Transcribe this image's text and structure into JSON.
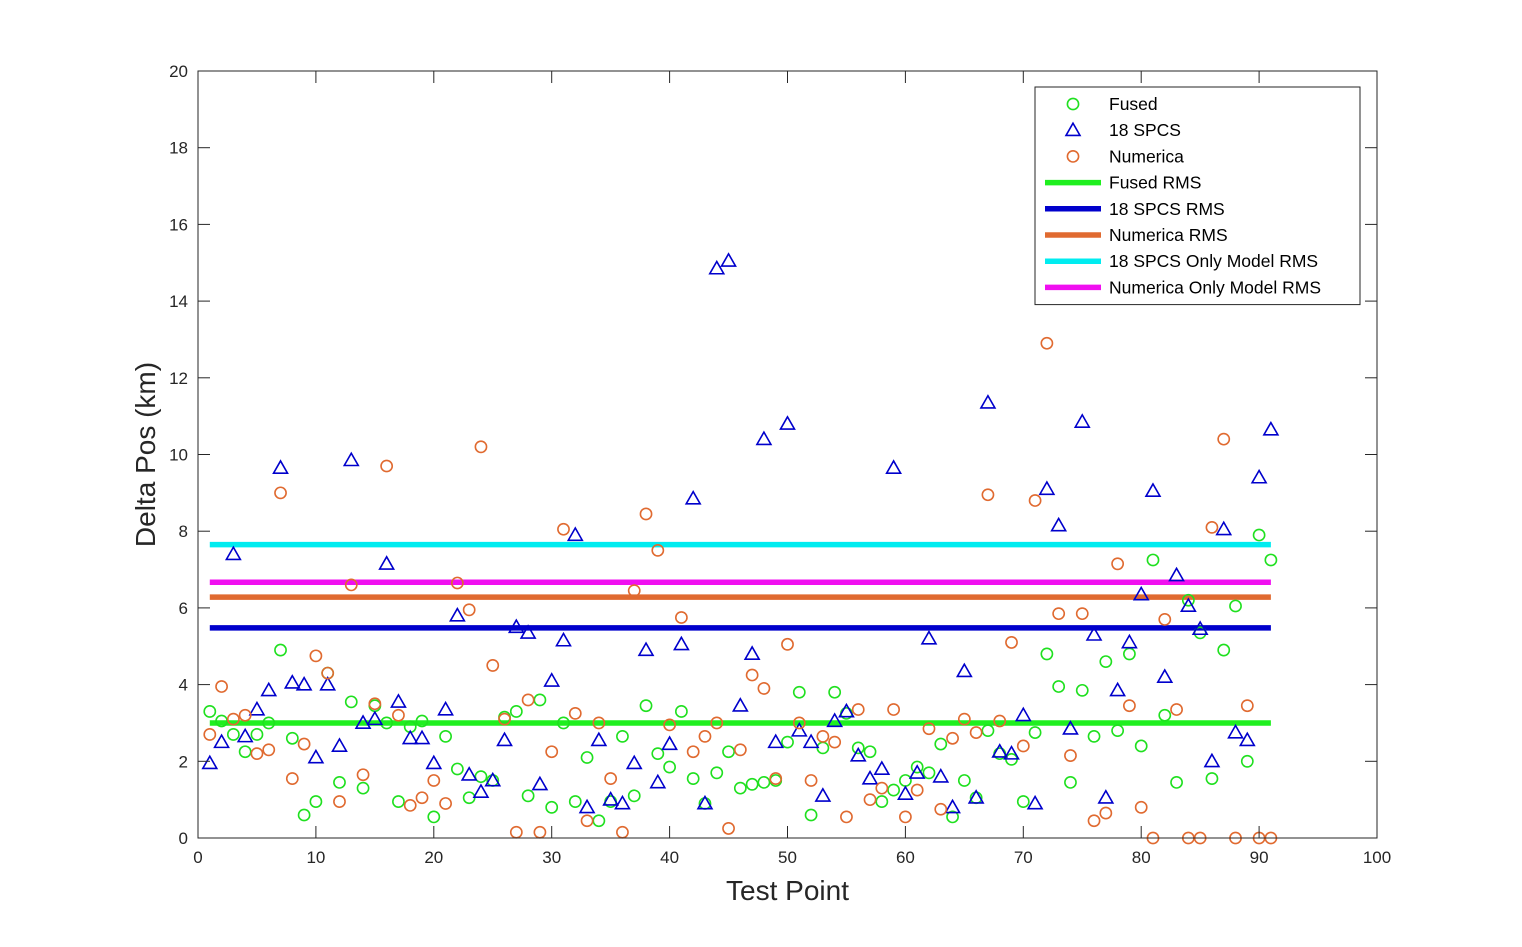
{
  "chart_data": {
    "type": "scatter",
    "xlabel": "Test Point",
    "ylabel": "Delta Pos (km)",
    "xlim": [
      0,
      100
    ],
    "ylim": [
      0,
      20
    ],
    "x_ticks": [
      0,
      10,
      20,
      30,
      40,
      50,
      60,
      70,
      80,
      90,
      100
    ],
    "y_ticks": [
      0,
      2,
      4,
      6,
      8,
      10,
      12,
      14,
      16,
      18,
      20
    ],
    "grid": false,
    "legend_position": "top-right",
    "series": [
      {
        "name": "Fused",
        "marker": "circle",
        "color": "#1fe01f",
        "points": [
          [
            1,
            3.3
          ],
          [
            2,
            3.05
          ],
          [
            3,
            2.7
          ],
          [
            4,
            2.25
          ],
          [
            5,
            2.7
          ],
          [
            6,
            3.0
          ],
          [
            7,
            4.9
          ],
          [
            8,
            2.6
          ],
          [
            9,
            0.6
          ],
          [
            10,
            0.95
          ],
          [
            11,
            4.3
          ],
          [
            12,
            1.45
          ],
          [
            13,
            3.55
          ],
          [
            14,
            1.3
          ],
          [
            15,
            3.45
          ],
          [
            16,
            3.0
          ],
          [
            17,
            0.95
          ],
          [
            18,
            2.9
          ],
          [
            19,
            3.05
          ],
          [
            20,
            0.55
          ],
          [
            21,
            2.65
          ],
          [
            22,
            1.8
          ],
          [
            23,
            1.05
          ],
          [
            24,
            1.6
          ],
          [
            25,
            1.5
          ],
          [
            26,
            3.15
          ],
          [
            27,
            3.3
          ],
          [
            28,
            1.1
          ],
          [
            29,
            3.6
          ],
          [
            30,
            0.8
          ],
          [
            31,
            3.0
          ],
          [
            32,
            0.95
          ],
          [
            33,
            2.1
          ],
          [
            34,
            0.45
          ],
          [
            35,
            0.95
          ],
          [
            36,
            2.65
          ],
          [
            37,
            1.1
          ],
          [
            38,
            3.45
          ],
          [
            39,
            2.2
          ],
          [
            40,
            1.85
          ],
          [
            41,
            3.3
          ],
          [
            42,
            1.55
          ],
          [
            43,
            0.9
          ],
          [
            44,
            1.7
          ],
          [
            45,
            2.25
          ],
          [
            46,
            1.3
          ],
          [
            47,
            1.4
          ],
          [
            48,
            1.45
          ],
          [
            49,
            1.5
          ],
          [
            50,
            2.5
          ],
          [
            51,
            3.8
          ],
          [
            52,
            0.6
          ],
          [
            53,
            2.35
          ],
          [
            54,
            3.8
          ],
          [
            55,
            3.25
          ],
          [
            56,
            2.35
          ],
          [
            57,
            2.25
          ],
          [
            58,
            0.95
          ],
          [
            59,
            1.25
          ],
          [
            60,
            1.5
          ],
          [
            61,
            1.85
          ],
          [
            62,
            1.7
          ],
          [
            63,
            2.45
          ],
          [
            64,
            0.55
          ],
          [
            65,
            1.5
          ],
          [
            66,
            1.05
          ],
          [
            67,
            2.8
          ],
          [
            68,
            2.2
          ],
          [
            69,
            2.05
          ],
          [
            70,
            0.95
          ],
          [
            71,
            2.75
          ],
          [
            72,
            4.8
          ],
          [
            73,
            3.95
          ],
          [
            74,
            1.45
          ],
          [
            75,
            3.85
          ],
          [
            76,
            2.65
          ],
          [
            77,
            4.6
          ],
          [
            78,
            2.8
          ],
          [
            79,
            4.8
          ],
          [
            80,
            2.4
          ],
          [
            81,
            7.25
          ],
          [
            82,
            3.2
          ],
          [
            83,
            1.45
          ],
          [
            84,
            6.2
          ],
          [
            85,
            5.35
          ],
          [
            86,
            1.55
          ],
          [
            87,
            4.9
          ],
          [
            88,
            6.05
          ],
          [
            89,
            2.0
          ],
          [
            90,
            7.9
          ],
          [
            91,
            7.25
          ]
        ]
      },
      {
        "name": "18 SPCS",
        "marker": "triangle",
        "color": "#0000cc",
        "points": [
          [
            1,
            1.95
          ],
          [
            2,
            2.5
          ],
          [
            3,
            7.4
          ],
          [
            4,
            2.65
          ],
          [
            5,
            3.35
          ],
          [
            6,
            3.85
          ],
          [
            7,
            9.65
          ],
          [
            8,
            4.05
          ],
          [
            9,
            4.0
          ],
          [
            10,
            2.1
          ],
          [
            11,
            4.0
          ],
          [
            12,
            2.4
          ],
          [
            13,
            9.85
          ],
          [
            14,
            3.0
          ],
          [
            15,
            3.1
          ],
          [
            16,
            7.15
          ],
          [
            17,
            3.55
          ],
          [
            18,
            2.6
          ],
          [
            19,
            2.6
          ],
          [
            20,
            1.95
          ],
          [
            21,
            3.35
          ],
          [
            22,
            5.8
          ],
          [
            23,
            1.65
          ],
          [
            24,
            1.2
          ],
          [
            25,
            1.5
          ],
          [
            26,
            2.55
          ],
          [
            27,
            5.5
          ],
          [
            28,
            5.35
          ],
          [
            29,
            1.4
          ],
          [
            30,
            4.1
          ],
          [
            31,
            5.15
          ],
          [
            32,
            7.9
          ],
          [
            33,
            0.8
          ],
          [
            34,
            2.55
          ],
          [
            35,
            1.0
          ],
          [
            36,
            0.9
          ],
          [
            37,
            1.95
          ],
          [
            38,
            4.9
          ],
          [
            39,
            1.45
          ],
          [
            40,
            2.45
          ],
          [
            41,
            5.05
          ],
          [
            42,
            8.85
          ],
          [
            43,
            0.9
          ],
          [
            44,
            14.85
          ],
          [
            45,
            15.05
          ],
          [
            46,
            3.45
          ],
          [
            47,
            4.8
          ],
          [
            48,
            10.4
          ],
          [
            49,
            2.5
          ],
          [
            50,
            10.8
          ],
          [
            51,
            2.8
          ],
          [
            52,
            2.5
          ],
          [
            53,
            1.1
          ],
          [
            54,
            3.05
          ],
          [
            55,
            3.3
          ],
          [
            56,
            2.15
          ],
          [
            57,
            1.55
          ],
          [
            58,
            1.8
          ],
          [
            59,
            9.65
          ],
          [
            60,
            1.15
          ],
          [
            61,
            1.7
          ],
          [
            62,
            5.2
          ],
          [
            63,
            1.6
          ],
          [
            64,
            0.8
          ],
          [
            65,
            4.35
          ],
          [
            66,
            1.05
          ],
          [
            67,
            11.35
          ],
          [
            68,
            2.25
          ],
          [
            69,
            2.2
          ],
          [
            70,
            3.2
          ],
          [
            71,
            0.9
          ],
          [
            72,
            9.1
          ],
          [
            73,
            8.15
          ],
          [
            74,
            2.85
          ],
          [
            75,
            10.85
          ],
          [
            76,
            5.3
          ],
          [
            77,
            1.05
          ],
          [
            78,
            3.85
          ],
          [
            79,
            5.1
          ],
          [
            80,
            6.35
          ],
          [
            81,
            9.05
          ],
          [
            82,
            4.2
          ],
          [
            83,
            6.85
          ],
          [
            84,
            6.05
          ],
          [
            85,
            5.45
          ],
          [
            86,
            2.0
          ],
          [
            87,
            8.05
          ],
          [
            88,
            2.75
          ],
          [
            89,
            2.55
          ],
          [
            90,
            9.4
          ],
          [
            91,
            10.65
          ]
        ]
      },
      {
        "name": "Numerica",
        "marker": "circle",
        "color": "#e06a30",
        "points": [
          [
            1,
            2.7
          ],
          [
            2,
            3.95
          ],
          [
            3,
            3.1
          ],
          [
            4,
            3.2
          ],
          [
            5,
            2.2
          ],
          [
            6,
            2.3
          ],
          [
            7,
            9.0
          ],
          [
            8,
            1.55
          ],
          [
            9,
            2.45
          ],
          [
            10,
            4.75
          ],
          [
            11,
            4.3
          ],
          [
            12,
            0.95
          ],
          [
            13,
            6.6
          ],
          [
            14,
            1.65
          ],
          [
            15,
            3.5
          ],
          [
            16,
            9.7
          ],
          [
            17,
            3.2
          ],
          [
            18,
            0.85
          ],
          [
            19,
            1.05
          ],
          [
            20,
            1.5
          ],
          [
            21,
            0.9
          ],
          [
            22,
            6.65
          ],
          [
            23,
            5.95
          ],
          [
            24,
            10.2
          ],
          [
            25,
            4.5
          ],
          [
            26,
            3.1
          ],
          [
            27,
            0.15
          ],
          [
            28,
            3.6
          ],
          [
            29,
            0.15
          ],
          [
            30,
            2.25
          ],
          [
            31,
            8.05
          ],
          [
            32,
            3.25
          ],
          [
            33,
            0.45
          ],
          [
            34,
            3.0
          ],
          [
            35,
            1.55
          ],
          [
            36,
            0.15
          ],
          [
            37,
            6.45
          ],
          [
            38,
            8.45
          ],
          [
            39,
            7.5
          ],
          [
            40,
            2.95
          ],
          [
            41,
            5.75
          ],
          [
            42,
            2.25
          ],
          [
            43,
            2.65
          ],
          [
            44,
            3.0
          ],
          [
            45,
            0.25
          ],
          [
            46,
            2.3
          ],
          [
            47,
            4.25
          ],
          [
            48,
            3.9
          ],
          [
            49,
            1.55
          ],
          [
            50,
            5.05
          ],
          [
            51,
            3.0
          ],
          [
            52,
            1.5
          ],
          [
            53,
            2.65
          ],
          [
            54,
            2.5
          ],
          [
            55,
            0.55
          ],
          [
            56,
            3.35
          ],
          [
            57,
            1.0
          ],
          [
            58,
            1.3
          ],
          [
            59,
            3.35
          ],
          [
            60,
            0.55
          ],
          [
            61,
            1.25
          ],
          [
            62,
            2.85
          ],
          [
            63,
            0.75
          ],
          [
            64,
            2.6
          ],
          [
            65,
            3.1
          ],
          [
            66,
            2.75
          ],
          [
            67,
            8.95
          ],
          [
            68,
            3.05
          ],
          [
            69,
            5.1
          ],
          [
            70,
            2.4
          ],
          [
            71,
            8.8
          ],
          [
            72,
            12.9
          ],
          [
            73,
            5.85
          ],
          [
            74,
            2.15
          ],
          [
            75,
            5.85
          ],
          [
            76,
            0.45
          ],
          [
            77,
            0.65
          ],
          [
            78,
            7.15
          ],
          [
            79,
            3.45
          ],
          [
            80,
            0.8
          ],
          [
            81,
            0.0
          ],
          [
            82,
            5.7
          ],
          [
            83,
            3.35
          ],
          [
            84,
            0.0
          ],
          [
            85,
            0.0
          ],
          [
            86,
            8.1
          ],
          [
            87,
            10.4
          ],
          [
            88,
            0.0
          ],
          [
            89,
            3.45
          ],
          [
            90,
            0.0
          ],
          [
            91,
            0.0
          ]
        ]
      }
    ],
    "lines": [
      {
        "name": "Fused RMS",
        "color": "#1fef1f",
        "y": 3.0,
        "x_range": [
          1,
          91
        ]
      },
      {
        "name": "18 SPCS RMS",
        "color": "#0000cc",
        "y": 5.48,
        "x_range": [
          1,
          91
        ]
      },
      {
        "name": "Numerica RMS",
        "color": "#e06a30",
        "y": 6.28,
        "x_range": [
          1,
          91
        ]
      },
      {
        "name": "18 SPCS Only Model RMS",
        "color": "#00ecf0",
        "y": 7.65,
        "x_range": [
          1,
          91
        ]
      },
      {
        "name": "Numerica Only Model RMS",
        "color": "#f00ff0",
        "y": 6.67,
        "x_range": [
          1,
          91
        ]
      }
    ]
  }
}
